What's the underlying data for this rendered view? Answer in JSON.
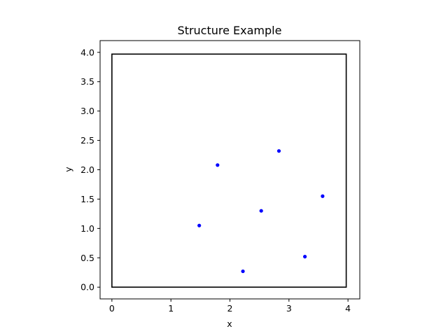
{
  "chart_data": {
    "type": "scatter",
    "title": "Structure Example",
    "xlabel": "x",
    "ylabel": "y",
    "xlim": [
      -0.2,
      4.2
    ],
    "ylim": [
      -0.2,
      4.2
    ],
    "xticks": [
      "0",
      "1",
      "2",
      "3",
      "4"
    ],
    "yticks": [
      "0.0",
      "0.5",
      "1.0",
      "1.5",
      "2.0",
      "2.5",
      "3.0",
      "3.5",
      "4.0"
    ],
    "grid": false,
    "point_color": "#0000ff",
    "boundary": {
      "color": "#000000",
      "x": [
        0,
        3.97
      ],
      "y": [
        0,
        3.97
      ]
    },
    "points": [
      {
        "x": 1.48,
        "y": 1.05
      },
      {
        "x": 1.79,
        "y": 2.08
      },
      {
        "x": 2.22,
        "y": 0.27
      },
      {
        "x": 2.53,
        "y": 1.3
      },
      {
        "x": 2.83,
        "y": 2.32
      },
      {
        "x": 3.27,
        "y": 0.52
      },
      {
        "x": 3.57,
        "y": 1.55
      }
    ]
  }
}
